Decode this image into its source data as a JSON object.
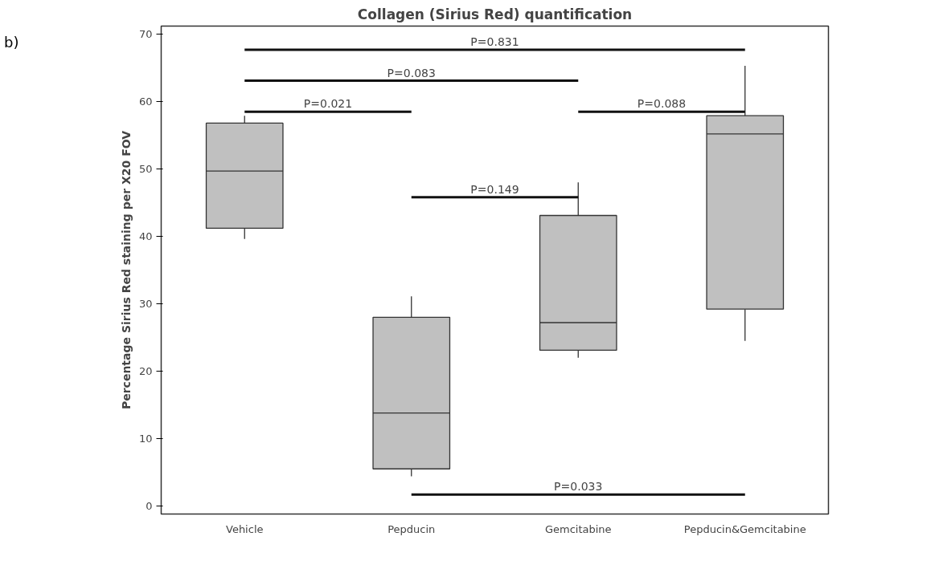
{
  "chart_data": {
    "type": "box",
    "title": "Collagen (Sirius Red) quantification",
    "ylabel": "Percentage Sirius Red staining per X20 FOV",
    "categories": [
      "Vehicle",
      "Pepducin",
      "Gemcitabine",
      "Pepducin&Gemcitabine"
    ],
    "boxes": [
      {
        "low": 39.6,
        "q1": 41.2,
        "median": 49.7,
        "q3": 56.8,
        "high": 57.9
      },
      {
        "low": 4.4,
        "q1": 5.5,
        "median": 13.8,
        "q3": 28.0,
        "high": 31.1
      },
      {
        "low": 22.0,
        "q1": 23.1,
        "median": 27.2,
        "q3": 43.1,
        "high": 48.0
      },
      {
        "low": 24.5,
        "q1": 29.2,
        "median": 55.2,
        "q3": 57.9,
        "high": 65.3
      }
    ],
    "color": "#c0c0c0",
    "ylim": [
      -1.2,
      71.2
    ],
    "yticks": [
      0,
      10,
      20,
      30,
      40,
      50,
      60,
      70
    ],
    "grid": false,
    "annotations": [
      "b)",
      "P=0.831",
      "P=0.083",
      "P=0.021",
      "P=0.149",
      "P=0.088",
      "P=0.033"
    ]
  }
}
